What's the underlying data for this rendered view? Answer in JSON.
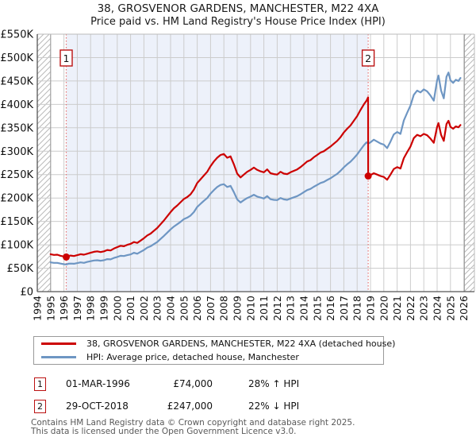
{
  "title": "38, GROSVENOR GARDENS, MANCHESTER, M22 4XA",
  "subtitle": "Price paid vs. HM Land Registry's House Price Index (HPI)",
  "legend": [
    {
      "label": "38, GROSVENOR GARDENS, MANCHESTER, M22 4XA (detached house)",
      "color": "#cc0000"
    },
    {
      "label": "HPI: Average price, detached house, Manchester",
      "color": "#6e96c3"
    }
  ],
  "sales": [
    {
      "num": "1",
      "date": "01-MAR-1996",
      "price": "£74,000",
      "hpi_diff": "28% ↑ HPI",
      "year": 1996.17,
      "value_k": 74
    },
    {
      "num": "2",
      "date": "29-OCT-2018",
      "price": "£247,000",
      "hpi_diff": "22% ↓ HPI",
      "year": 2018.83,
      "value_k": 247
    }
  ],
  "footer": {
    "line1": "Contains HM Land Registry data © Crown copyright and database right 2025.",
    "line2": "This data is licensed under the Open Government Licence v3.0."
  },
  "chart_data": {
    "type": "line",
    "title": "38, GROSVENOR GARDENS, MANCHESTER, M22 4XA",
    "subtitle": "Price paid vs. HM Land Registry's House Price Index (HPI)",
    "unit": "GBP, values in thousands (K)",
    "xlim": [
      1994,
      2026.8
    ],
    "ylim_k": [
      0,
      550
    ],
    "x_ticks": [
      1994,
      1995,
      1996,
      1997,
      1998,
      1999,
      2000,
      2001,
      2002,
      2003,
      2004,
      2005,
      2006,
      2007,
      2008,
      2009,
      2010,
      2011,
      2012,
      2013,
      2014,
      2015,
      2016,
      2017,
      2018,
      2019,
      2020,
      2021,
      2022,
      2023,
      2024,
      2025,
      2026
    ],
    "y_ticks": [
      {
        "value_k": 0,
        "label": "£0"
      },
      {
        "value_k": 50,
        "label": "£50K"
      },
      {
        "value_k": 100,
        "label": "£100K"
      },
      {
        "value_k": 150,
        "label": "£150K"
      },
      {
        "value_k": 200,
        "label": "£200K"
      },
      {
        "value_k": 250,
        "label": "£250K"
      },
      {
        "value_k": 300,
        "label": "£300K"
      },
      {
        "value_k": 350,
        "label": "£350K"
      },
      {
        "value_k": 400,
        "label": "£400K"
      },
      {
        "value_k": 450,
        "label": "£450K"
      },
      {
        "value_k": 500,
        "label": "£500K"
      },
      {
        "value_k": 550,
        "label": "£550K"
      }
    ],
    "grid": true,
    "legend_position": "below",
    "shaded_span": {
      "from": 1996.17,
      "to": 2018.83,
      "color": "#edf1fa"
    },
    "hatched_spans": [
      [
        1994,
        1995
      ],
      [
        2026.05,
        2026.8
      ]
    ],
    "sale_markers": [
      {
        "num": "1",
        "year": 1996.17,
        "value_k": 74
      },
      {
        "num": "2",
        "year": 2018.83,
        "value_k": 247
      }
    ],
    "series": [
      {
        "name": "38, GROSVENOR GARDENS, MANCHESTER, M22 4XA (detached house)",
        "color": "#cc0000",
        "points_k": [
          [
            1995,
            80
          ],
          [
            1995.25,
            78.5
          ],
          [
            1995.5,
            79
          ],
          [
            1995.75,
            76.5
          ],
          [
            1996,
            75
          ],
          [
            1996.17,
            74
          ],
          [
            1996.33,
            76
          ],
          [
            1996.5,
            77
          ],
          [
            1996.75,
            76
          ],
          [
            1997,
            78
          ],
          [
            1997.25,
            80
          ],
          [
            1997.5,
            79
          ],
          [
            1997.75,
            81
          ],
          [
            1998,
            83
          ],
          [
            1998.25,
            85
          ],
          [
            1998.5,
            86
          ],
          [
            1998.75,
            84.5
          ],
          [
            1999,
            86
          ],
          [
            1999.25,
            89
          ],
          [
            1999.5,
            88
          ],
          [
            1999.75,
            92
          ],
          [
            2000,
            95
          ],
          [
            2000.25,
            98
          ],
          [
            2000.5,
            97
          ],
          [
            2000.75,
            100
          ],
          [
            2001,
            102
          ],
          [
            2001.25,
            106
          ],
          [
            2001.5,
            104
          ],
          [
            2001.75,
            109
          ],
          [
            2002,
            114
          ],
          [
            2002.25,
            120
          ],
          [
            2002.5,
            124
          ],
          [
            2002.75,
            130
          ],
          [
            2003,
            136
          ],
          [
            2003.25,
            144
          ],
          [
            2003.5,
            152
          ],
          [
            2003.75,
            161
          ],
          [
            2004,
            170
          ],
          [
            2004.25,
            178
          ],
          [
            2004.5,
            184
          ],
          [
            2004.75,
            191
          ],
          [
            2005,
            198
          ],
          [
            2005.25,
            202
          ],
          [
            2005.5,
            208
          ],
          [
            2005.75,
            218
          ],
          [
            2006,
            232
          ],
          [
            2006.25,
            240
          ],
          [
            2006.5,
            248
          ],
          [
            2006.75,
            256
          ],
          [
            2007,
            268
          ],
          [
            2007.25,
            278
          ],
          [
            2007.5,
            286
          ],
          [
            2007.75,
            292
          ],
          [
            2008,
            294
          ],
          [
            2008.25,
            286
          ],
          [
            2008.5,
            289
          ],
          [
            2008.75,
            272
          ],
          [
            2009,
            252
          ],
          [
            2009.25,
            244
          ],
          [
            2009.5,
            250
          ],
          [
            2009.75,
            256
          ],
          [
            2010,
            260
          ],
          [
            2010.25,
            265
          ],
          [
            2010.5,
            260
          ],
          [
            2010.75,
            257
          ],
          [
            2011,
            255
          ],
          [
            2011.25,
            261
          ],
          [
            2011.5,
            253
          ],
          [
            2011.75,
            251
          ],
          [
            2012,
            250
          ],
          [
            2012.25,
            256
          ],
          [
            2012.5,
            252
          ],
          [
            2012.75,
            251
          ],
          [
            2013,
            255
          ],
          [
            2013.25,
            258
          ],
          [
            2013.5,
            261
          ],
          [
            2013.75,
            266
          ],
          [
            2014,
            272
          ],
          [
            2014.25,
            278
          ],
          [
            2014.5,
            281
          ],
          [
            2014.75,
            287
          ],
          [
            2015,
            292
          ],
          [
            2015.25,
            297
          ],
          [
            2015.5,
            300
          ],
          [
            2015.75,
            305
          ],
          [
            2016,
            310
          ],
          [
            2016.25,
            316
          ],
          [
            2016.5,
            322
          ],
          [
            2016.75,
            330
          ],
          [
            2017,
            340
          ],
          [
            2017.25,
            348
          ],
          [
            2017.5,
            355
          ],
          [
            2017.75,
            365
          ],
          [
            2018,
            375
          ],
          [
            2018.25,
            388
          ],
          [
            2018.5,
            400
          ],
          [
            2018.7,
            408
          ],
          [
            2018.82,
            415
          ],
          [
            2018.83,
            247
          ],
          [
            2019,
            249
          ],
          [
            2019.25,
            253
          ],
          [
            2019.5,
            250
          ],
          [
            2019.75,
            247
          ],
          [
            2020,
            245
          ],
          [
            2020.25,
            239
          ],
          [
            2020.5,
            250
          ],
          [
            2020.75,
            262
          ],
          [
            2021,
            266
          ],
          [
            2021.25,
            263
          ],
          [
            2021.5,
            285
          ],
          [
            2021.75,
            298
          ],
          [
            2022,
            310
          ],
          [
            2022.25,
            328
          ],
          [
            2022.5,
            335
          ],
          [
            2022.75,
            332
          ],
          [
            2023,
            337
          ],
          [
            2023.25,
            334
          ],
          [
            2023.5,
            327
          ],
          [
            2023.75,
            318
          ],
          [
            2024,
            352
          ],
          [
            2024.1,
            360
          ],
          [
            2024.3,
            335
          ],
          [
            2024.5,
            322
          ],
          [
            2024.7,
            358
          ],
          [
            2024.85,
            365
          ],
          [
            2025,
            352
          ],
          [
            2025.2,
            348
          ],
          [
            2025.4,
            353
          ],
          [
            2025.6,
            351
          ],
          [
            2025.75,
            356
          ]
        ]
      },
      {
        "name": "HPI: Average price, detached house, Manchester",
        "color": "#6e96c3",
        "points_k": [
          [
            1995,
            62.5
          ],
          [
            1995.25,
            61.5
          ],
          [
            1995.5,
            61.5
          ],
          [
            1995.75,
            60
          ],
          [
            1996,
            58.5
          ],
          [
            1996.17,
            58
          ],
          [
            1996.33,
            59.5
          ],
          [
            1996.5,
            60
          ],
          [
            1996.75,
            59.5
          ],
          [
            1997,
            61
          ],
          [
            1997.25,
            62.5
          ],
          [
            1997.5,
            61.5
          ],
          [
            1997.75,
            63.5
          ],
          [
            1998,
            65
          ],
          [
            1998.25,
            66.5
          ],
          [
            1998.5,
            67
          ],
          [
            1998.75,
            66
          ],
          [
            1999,
            67
          ],
          [
            1999.25,
            69.5
          ],
          [
            1999.5,
            69
          ],
          [
            1999.75,
            72
          ],
          [
            2000,
            74
          ],
          [
            2000.25,
            76.5
          ],
          [
            2000.5,
            76
          ],
          [
            2000.75,
            78
          ],
          [
            2001,
            79.5
          ],
          [
            2001.25,
            83
          ],
          [
            2001.5,
            81
          ],
          [
            2001.75,
            85
          ],
          [
            2002,
            89
          ],
          [
            2002.25,
            94
          ],
          [
            2002.5,
            97
          ],
          [
            2002.75,
            101.5
          ],
          [
            2003,
            106
          ],
          [
            2003.25,
            112.5
          ],
          [
            2003.5,
            119
          ],
          [
            2003.75,
            126
          ],
          [
            2004,
            133
          ],
          [
            2004.25,
            139
          ],
          [
            2004.5,
            144
          ],
          [
            2004.75,
            149
          ],
          [
            2005,
            155
          ],
          [
            2005.25,
            158
          ],
          [
            2005.5,
            162.5
          ],
          [
            2005.75,
            170
          ],
          [
            2006,
            181
          ],
          [
            2006.25,
            187.5
          ],
          [
            2006.5,
            194
          ],
          [
            2006.75,
            200
          ],
          [
            2007,
            209.5
          ],
          [
            2007.25,
            217
          ],
          [
            2007.5,
            223.5
          ],
          [
            2007.75,
            228
          ],
          [
            2008,
            229.5
          ],
          [
            2008.25,
            223.5
          ],
          [
            2008.5,
            226
          ],
          [
            2008.75,
            212.5
          ],
          [
            2009,
            197
          ],
          [
            2009.25,
            190.5
          ],
          [
            2009.5,
            195.5
          ],
          [
            2009.75,
            200
          ],
          [
            2010,
            203
          ],
          [
            2010.25,
            207
          ],
          [
            2010.5,
            203
          ],
          [
            2010.75,
            201
          ],
          [
            2011,
            199
          ],
          [
            2011.25,
            204
          ],
          [
            2011.5,
            197.5
          ],
          [
            2011.75,
            196
          ],
          [
            2012,
            195.5
          ],
          [
            2012.25,
            200
          ],
          [
            2012.5,
            197
          ],
          [
            2012.75,
            196
          ],
          [
            2013,
            199
          ],
          [
            2013.25,
            201.5
          ],
          [
            2013.5,
            204
          ],
          [
            2013.75,
            208
          ],
          [
            2014,
            212.5
          ],
          [
            2014.25,
            217
          ],
          [
            2014.5,
            219.5
          ],
          [
            2014.75,
            224
          ],
          [
            2015,
            228
          ],
          [
            2015.25,
            232
          ],
          [
            2015.5,
            234.5
          ],
          [
            2015.75,
            238.5
          ],
          [
            2016,
            242
          ],
          [
            2016.25,
            247
          ],
          [
            2016.5,
            251.5
          ],
          [
            2016.75,
            258
          ],
          [
            2017,
            265.5
          ],
          [
            2017.25,
            272
          ],
          [
            2017.5,
            277.5
          ],
          [
            2017.75,
            285
          ],
          [
            2018,
            293
          ],
          [
            2018.25,
            303
          ],
          [
            2018.5,
            312.5
          ],
          [
            2018.7,
            319
          ],
          [
            2018.83,
            316.5
          ],
          [
            2019,
            319
          ],
          [
            2019.25,
            324.5
          ],
          [
            2019.5,
            320.5
          ],
          [
            2019.75,
            316.5
          ],
          [
            2020,
            314
          ],
          [
            2020.25,
            306.5
          ],
          [
            2020.5,
            320.5
          ],
          [
            2020.75,
            336
          ],
          [
            2021,
            341
          ],
          [
            2021.25,
            337
          ],
          [
            2021.5,
            365.5
          ],
          [
            2021.75,
            382
          ],
          [
            2022,
            397.5
          ],
          [
            2022.25,
            420.5
          ],
          [
            2022.5,
            429.5
          ],
          [
            2022.75,
            425.5
          ],
          [
            2023,
            432
          ],
          [
            2023.25,
            428
          ],
          [
            2023.5,
            419
          ],
          [
            2023.75,
            408
          ],
          [
            2024,
            451.5
          ],
          [
            2024.1,
            461.5
          ],
          [
            2024.3,
            429.5
          ],
          [
            2024.5,
            413
          ],
          [
            2024.7,
            459
          ],
          [
            2024.85,
            468
          ],
          [
            2025,
            451.5
          ],
          [
            2025.2,
            446
          ],
          [
            2025.4,
            452.5
          ],
          [
            2025.6,
            450
          ],
          [
            2025.75,
            456.5
          ]
        ]
      }
    ],
    "colors": {
      "property_line": "#cc0000",
      "hpi_line": "#6e96c3",
      "shade": "#edf1fa",
      "grid": "#cccccc",
      "sale_dashed_line": "#e57373",
      "marker_box_border": "#bb1111",
      "axis_dark": "#555555",
      "axis_light": "#bbbbbb",
      "hatch": "#b9b9b9"
    }
  }
}
